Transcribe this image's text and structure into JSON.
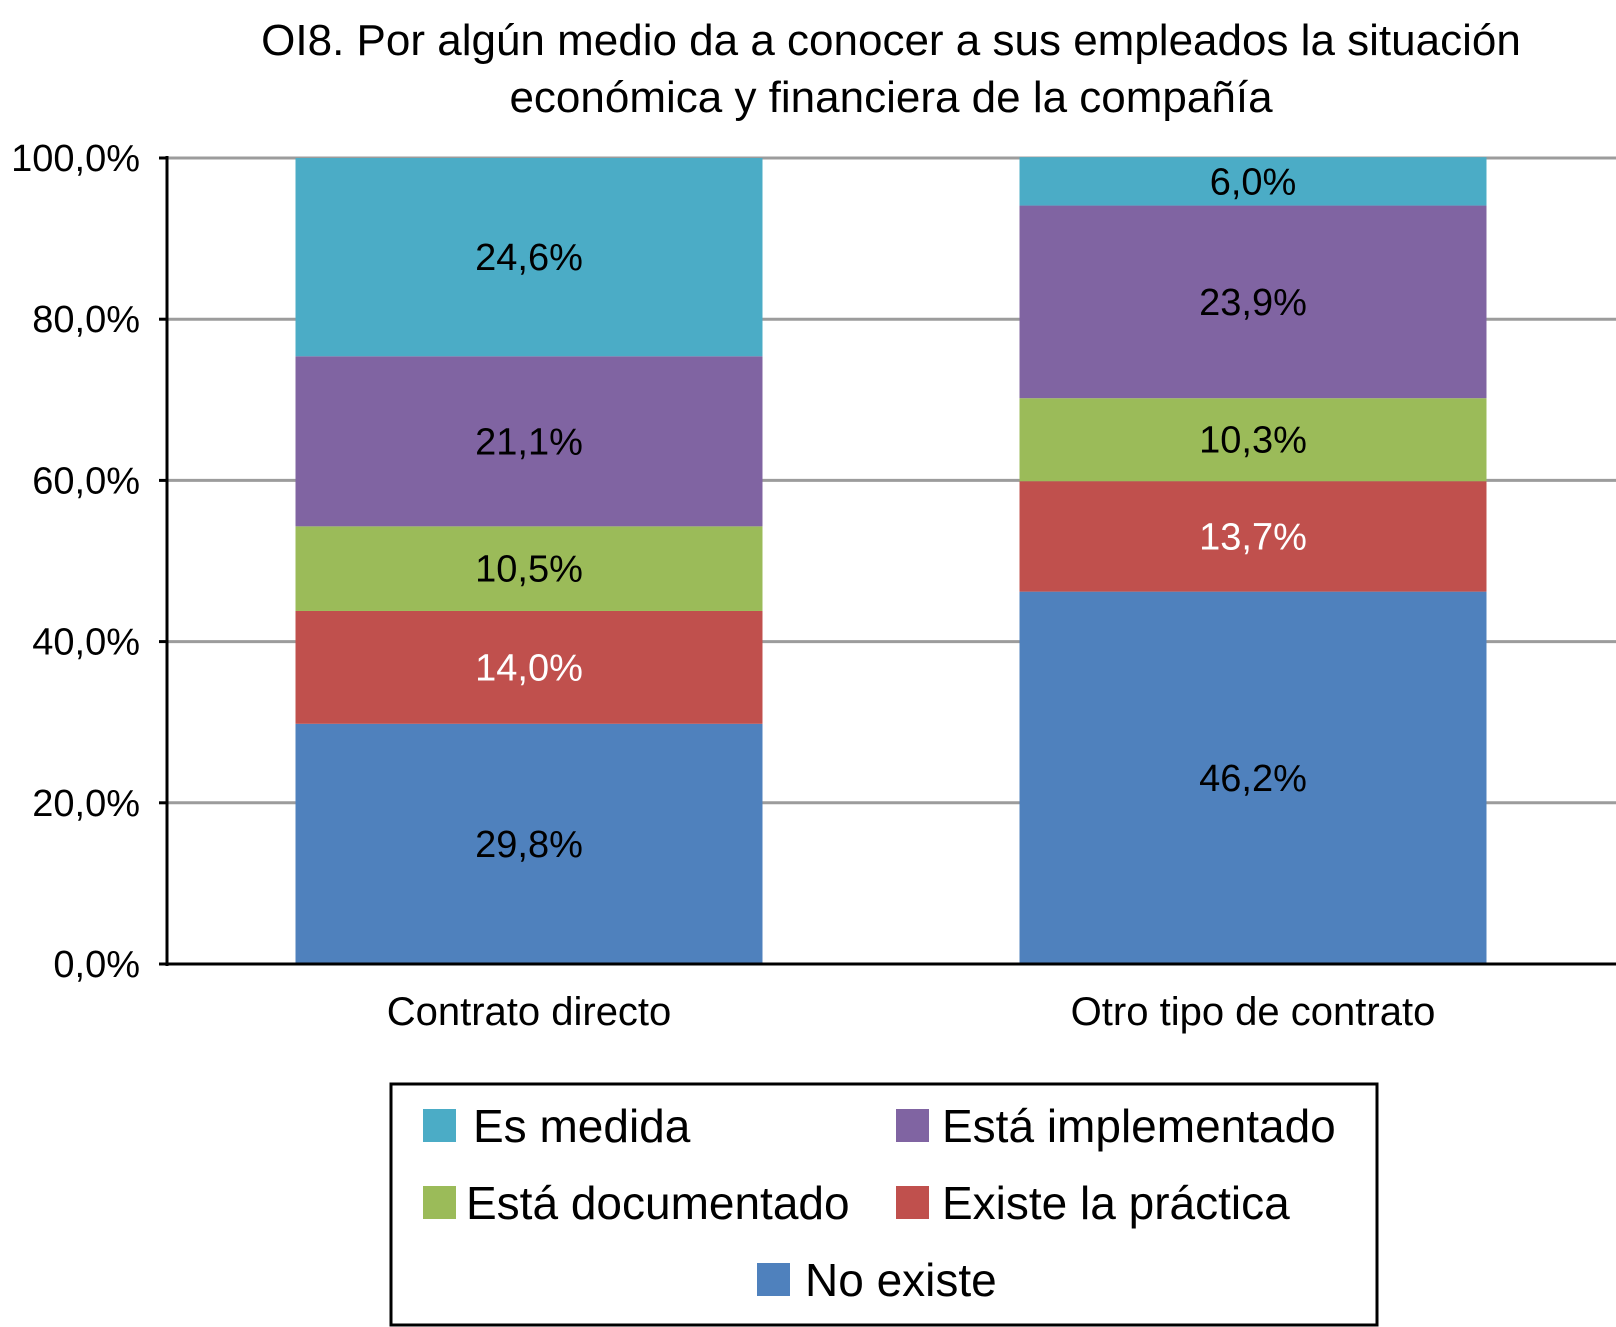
{
  "chart_data": {
    "type": "bar",
    "stacked": true,
    "title": "OI8. Por algún medio da a conocer a sus empleados la situación económica y financiera de la compañía",
    "title_lines": [
      "OI8. Por algún medio da a conocer a sus empleados la situación",
      "económica y financiera de la compañía"
    ],
    "xlabel": "",
    "ylabel": "",
    "ylim": [
      0,
      100
    ],
    "yticks": [
      0,
      20,
      40,
      60,
      80,
      100
    ],
    "ytick_labels": [
      "0,0%",
      "20,0%",
      "40,0%",
      "60,0%",
      "80,0%",
      "100,0%"
    ],
    "grid": true,
    "legend_position": "bottom",
    "categories": [
      "Contrato directo",
      "Otro tipo de contrato"
    ],
    "series": [
      {
        "name": "No existe",
        "color": "#4F81BD",
        "label_color": "#000000",
        "values": [
          29.8,
          46.2
        ],
        "labels": [
          "29,8%",
          "46,2%"
        ]
      },
      {
        "name": "Existe la práctica",
        "color": "#C0504D",
        "label_color": "#FFFFFF",
        "values": [
          14.0,
          13.7
        ],
        "labels": [
          "14,0%",
          "13,7%"
        ]
      },
      {
        "name": "Está documentado",
        "color": "#9BBB59",
        "label_color": "#000000",
        "values": [
          10.5,
          10.3
        ],
        "labels": [
          "10,5%",
          "10,3%"
        ]
      },
      {
        "name": "Está implementado",
        "color": "#8064A2",
        "label_color": "#000000",
        "values": [
          21.1,
          23.9
        ],
        "labels": [
          "21,1%",
          "23,9%"
        ]
      },
      {
        "name": "Es medida",
        "color": "#4BACC6",
        "label_color": "#000000",
        "values": [
          24.6,
          6.0
        ],
        "labels": [
          "24,6%",
          "6,0%"
        ]
      }
    ],
    "legend_order": [
      "Es medida",
      "Está implementado",
      "Está documentado",
      "Existe la práctica",
      "No existe"
    ],
    "gridline_color": "#9C9C9C",
    "axis_color": "#000000"
  }
}
